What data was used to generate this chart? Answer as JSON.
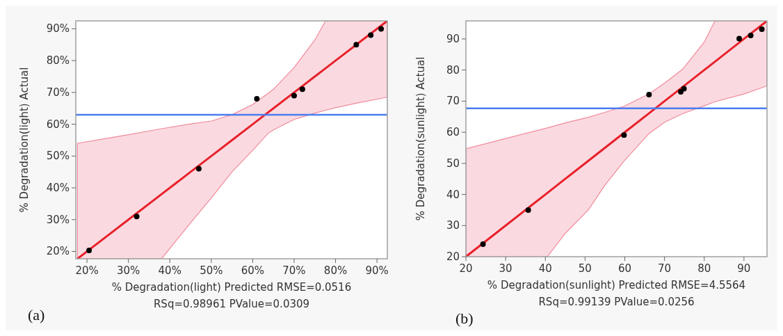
{
  "chart_data": [
    {
      "type": "scatter",
      "xlabel": "% Degradation(light) Predicted RMSE=0.0516",
      "ylabel": "% Degradation(light) Actual",
      "annotations": [
        "RSq=0.98961 PValue=0.0309",
        "(a)"
      ],
      "xlim": [
        17.3,
        92.5
      ],
      "ylim": [
        17.7,
        92.5
      ],
      "xticks": [
        {
          "value": 20,
          "label": "20%"
        },
        {
          "value": 30,
          "label": "30%"
        },
        {
          "value": 40,
          "label": "40%"
        },
        {
          "value": 50,
          "label": "50%"
        },
        {
          "value": 60,
          "label": "60%"
        },
        {
          "value": 70,
          "label": "70%"
        },
        {
          "value": 80,
          "label": "80%"
        },
        {
          "value": 90,
          "label": "90%"
        }
      ],
      "yticks": [
        {
          "value": 20,
          "label": "20%"
        },
        {
          "value": 30,
          "label": "30%"
        },
        {
          "value": 40,
          "label": "40%"
        },
        {
          "value": 50,
          "label": "50%"
        },
        {
          "value": 60,
          "label": "60%"
        },
        {
          "value": 70,
          "label": "70%"
        },
        {
          "value": 80,
          "label": "80%"
        },
        {
          "value": 90,
          "label": "90%"
        }
      ],
      "ref_lines": [
        {
          "axis": "y",
          "value": 63,
          "color": "#4a7cf0"
        }
      ],
      "series": [
        {
          "type": "line",
          "marker": "none",
          "color": "#e8202a",
          "x": [
            17.7,
            25,
            30,
            38,
            45,
            50,
            55,
            60,
            63.7,
            65,
            70,
            75,
            77.6,
            80,
            85,
            92.5
          ],
          "values": [
            17.7,
            25,
            30,
            38,
            45,
            50,
            55,
            60,
            63.7,
            65,
            70,
            75,
            77.6,
            80,
            85,
            92.5
          ],
          "upper": [
            54.0,
            55.6,
            56.7,
            58.6,
            60.1,
            61.0,
            63.0,
            66.2,
            69.7,
            71.0,
            77.8,
            86.5,
            92.5,
            92.5,
            92.5,
            92.5
          ],
          "lower": [
            17.7,
            17.7,
            17.7,
            17.7,
            29,
            36.8,
            45,
            51.8,
            57.1,
            58.2,
            61.5,
            63.5,
            64.4,
            65.2,
            66.6,
            68.5
          ]
        },
        {
          "type": "scatter",
          "marker": "circle",
          "color": "#000000",
          "x": [
            20.5,
            32,
            47,
            61,
            70,
            72,
            85,
            88.5,
            91
          ],
          "values": [
            20.3,
            31,
            46,
            68,
            69,
            71,
            85,
            88,
            90
          ]
        }
      ]
    },
    {
      "type": "scatter",
      "xlabel": "% Degradation(sunlight) Predicted RMSE=4.5564",
      "ylabel": "% Degradation(sunlight) Actual",
      "annotations": [
        "RSq=0.99139 PValue=0.0256",
        "(b)"
      ],
      "xlim": [
        20,
        95.8
      ],
      "ylim": [
        20,
        95.8
      ],
      "xticks": [
        20,
        30,
        40,
        50,
        60,
        70,
        80,
        90
      ],
      "yticks": [
        20,
        30,
        40,
        50,
        60,
        70,
        80,
        90
      ],
      "ref_lines": [
        {
          "axis": "y",
          "value": 67.7,
          "color": "#4a7cf0"
        }
      ],
      "series": [
        {
          "type": "line",
          "marker": "none",
          "color": "#e8202a",
          "x": [
            20,
            30,
            40.5,
            45,
            50.8,
            55,
            59.9,
            66.1,
            70,
            74.6,
            80,
            82.7,
            90,
            95.8
          ],
          "values": [
            20,
            30,
            40.5,
            45,
            50.8,
            55,
            59.9,
            66.1,
            70,
            74.6,
            80,
            82.7,
            90,
            95.8
          ],
          "upper": [
            54.7,
            58.0,
            61.4,
            63.0,
            64.8,
            66.4,
            68.4,
            72.3,
            75.8,
            80.3,
            89,
            95.8,
            95.8,
            95.8
          ],
          "lower": [
            20,
            20,
            20,
            27.5,
            35,
            43,
            50.9,
            59.6,
            63.2,
            66,
            68.5,
            69.8,
            72.3,
            74.9
          ]
        },
        {
          "type": "scatter",
          "marker": "circle",
          "color": "#000000",
          "x": [
            24.3,
            35.7,
            59.8,
            66.1,
            74.1,
            74.9,
            88.8,
            91.7,
            94.5
          ],
          "values": [
            24.0,
            35.0,
            59.1,
            72.1,
            73.0,
            74.0,
            90.1,
            91.1,
            93.1
          ]
        }
      ]
    }
  ]
}
